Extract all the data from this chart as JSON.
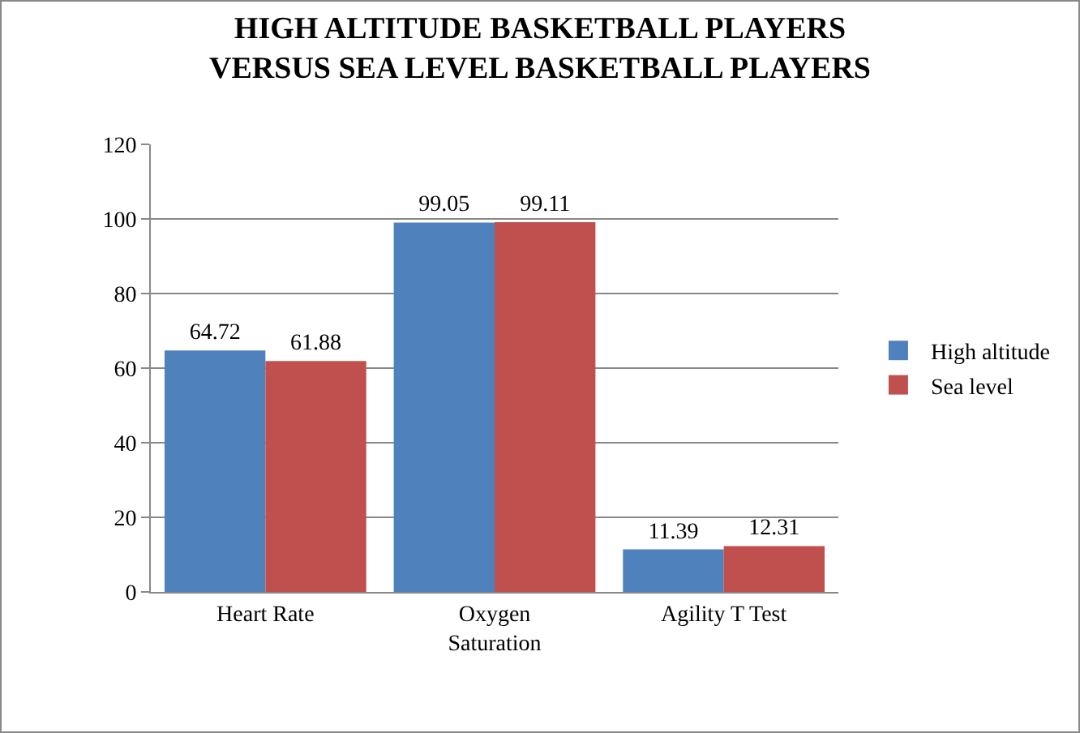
{
  "chart_data": {
    "type": "bar",
    "title": "HIGH ALTITUDE BASKETBALL PLAYERS\nVERSUS SEA LEVEL BASKETBALL PLAYERS",
    "categories": [
      "Heart Rate",
      "Oxygen\nSaturation",
      "Agility T Test"
    ],
    "series": [
      {
        "name": "High altitude",
        "color": "#4f81bd",
        "values": [
          64.72,
          99.05,
          11.39
        ]
      },
      {
        "name": "Sea level",
        "color": "#c0504d",
        "values": [
          61.88,
          99.11,
          12.31
        ]
      }
    ],
    "ylim": [
      0,
      120
    ],
    "yticks": [
      0,
      20,
      40,
      60,
      80,
      100,
      120
    ],
    "grid": "y",
    "legend": "right",
    "data_labels": true
  }
}
